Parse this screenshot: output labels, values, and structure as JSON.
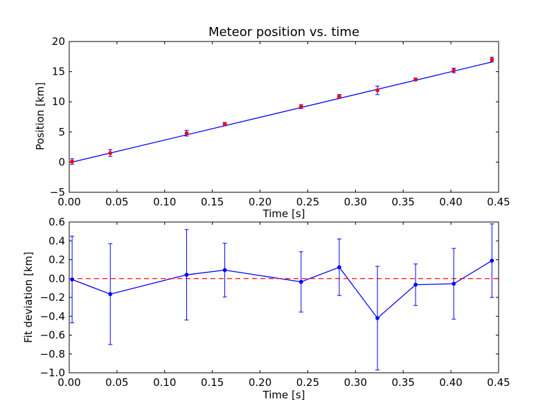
{
  "chart_data": [
    {
      "type": "scatter",
      "title": "Meteor position vs. time",
      "xlabel": "Time [s]",
      "ylabel": "Position [km]",
      "xlim": [
        0.0,
        0.45
      ],
      "ylim": [
        -5,
        20
      ],
      "xticks": [
        "0.00",
        "0.05",
        "0.10",
        "0.15",
        "0.20",
        "0.25",
        "0.30",
        "0.35",
        "0.40",
        "0.45"
      ],
      "yticks": [
        "−5",
        "0",
        "5",
        "10",
        "15",
        "20"
      ],
      "grid": false,
      "series": [
        {
          "kind": "points_with_errorbars",
          "color": "#ff0000",
          "errorbar_color": "#0000ff",
          "x": [
            0.003,
            0.043,
            0.123,
            0.163,
            0.243,
            0.283,
            0.323,
            0.363,
            0.403,
            0.443
          ],
          "y": [
            0.1,
            1.5,
            4.8,
            6.3,
            9.2,
            10.9,
            11.9,
            13.7,
            15.2,
            17.0
          ],
          "yerr": [
            0.45,
            0.55,
            0.48,
            0.28,
            0.32,
            0.3,
            0.7,
            0.22,
            0.38,
            0.38
          ]
        },
        {
          "kind": "fit_line",
          "color": "#0000ff",
          "x": [
            0.003,
            0.443
          ],
          "y": [
            0.0,
            16.6
          ]
        }
      ]
    },
    {
      "type": "line",
      "title": "",
      "xlabel": "Time [s]",
      "ylabel": "Fit deviation [km]",
      "xlim": [
        0.0,
        0.45
      ],
      "ylim": [
        -1.0,
        0.6
      ],
      "xticks": [
        "0.00",
        "0.05",
        "0.10",
        "0.15",
        "0.20",
        "0.25",
        "0.30",
        "0.35",
        "0.40",
        "0.45"
      ],
      "yticks": [
        "−1.0",
        "−0.8",
        "−0.6",
        "−0.4",
        "−0.2",
        "0.0",
        "0.2",
        "0.4",
        "0.6"
      ],
      "grid": false,
      "series": [
        {
          "kind": "line_with_errorbars",
          "color": "#0000ff",
          "x": [
            0.003,
            0.043,
            0.123,
            0.163,
            0.243,
            0.283,
            0.323,
            0.363,
            0.403,
            0.443
          ],
          "y": [
            -0.01,
            -0.165,
            0.04,
            0.09,
            -0.035,
            0.12,
            -0.42,
            -0.065,
            -0.055,
            0.19
          ],
          "yerr": [
            0.46,
            0.535,
            0.48,
            0.285,
            0.32,
            0.3,
            0.55,
            0.22,
            0.375,
            0.39
          ]
        },
        {
          "kind": "reference_line",
          "style": "dashed",
          "color": "#ff0000",
          "y": 0.0
        }
      ]
    }
  ]
}
